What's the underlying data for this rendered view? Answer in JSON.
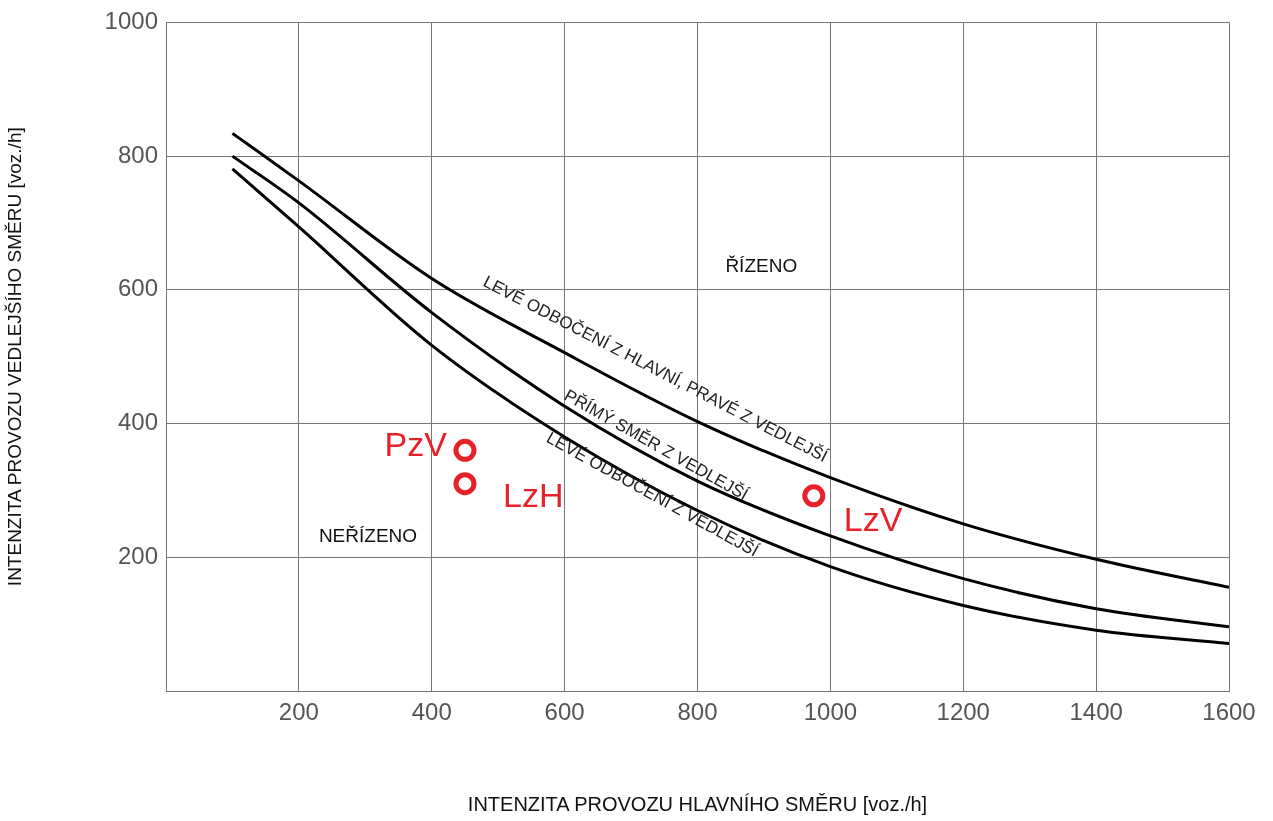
{
  "chart_data": {
    "type": "line",
    "xlabel": "INTENZITA PROVOZU HLAVNÍHO SMĚRU [voz./h]",
    "ylabel": "INTENZITA PROVOZU VEDLEJŠÍHO SMĚRU [voz./h]",
    "xlim": [
      0,
      1600
    ],
    "xticks": [
      200,
      400,
      600,
      800,
      1000,
      1200,
      1400,
      1600
    ],
    "ylim": [
      0,
      1000
    ],
    "yticks": [
      200,
      400,
      600,
      800,
      1000
    ],
    "grid": true,
    "legend": false,
    "line_style": "solid",
    "series": [
      {
        "name": "LEVÉ ODBOČENÍ Z HLAVNÍ, PRAVÉ Z VEDLEJŠÍ",
        "marker": "none",
        "color": "#000000",
        "x": [
          100,
          200,
          400,
          600,
          800,
          1000,
          1200,
          1400,
          1600
        ],
        "values": [
          834,
          763,
          617,
          506,
          403,
          319,
          250,
          197,
          155
        ]
      },
      {
        "name": "PŘÍMÝ SMĚR Z VEDLEJŠÍ",
        "marker": "none",
        "color": "#000000",
        "x": [
          100,
          200,
          400,
          600,
          800,
          1000,
          1200,
          1400,
          1600
        ],
        "values": [
          800,
          730,
          566,
          426,
          314,
          232,
          168,
          123,
          96
        ]
      },
      {
        "name": "LEVÉ ODBOČENÍ Z VEDLEJŠÍ",
        "marker": "none",
        "color": "#000000",
        "x": [
          100,
          200,
          400,
          600,
          800,
          1000,
          1200,
          1400,
          1600
        ],
        "values": [
          781,
          694,
          517,
          380,
          270,
          186,
          128,
          91,
          71
        ]
      },
      {
        "name": "PzV",
        "type": "scatter",
        "marker": "circle",
        "color": "#e8202a",
        "x": [
          450
        ],
        "values": [
          360
        ]
      },
      {
        "name": "LzH",
        "type": "scatter",
        "marker": "circle",
        "color": "#e8202a",
        "x": [
          450
        ],
        "values": [
          310
        ]
      },
      {
        "name": "LzV",
        "type": "scatter",
        "marker": "circle",
        "color": "#e8202a",
        "x": [
          975
        ],
        "values": [
          292
        ]
      }
    ],
    "annotations": [
      "ŘÍZENO",
      "NEŘÍZENO"
    ]
  }
}
